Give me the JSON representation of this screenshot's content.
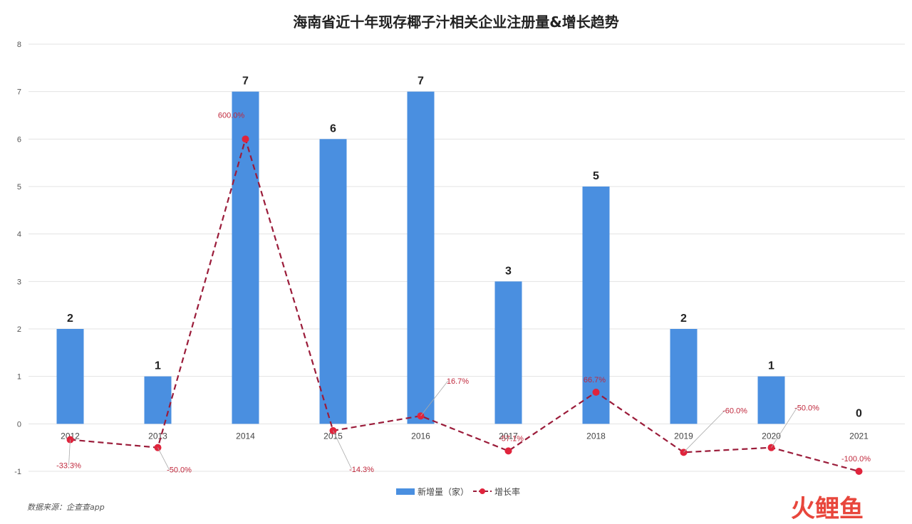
{
  "chart_data": {
    "type": "bar",
    "title": "海南省近十年现存椰子汁相关企业注册量&增长趋势",
    "categories": [
      "2012",
      "2013",
      "2014",
      "2015",
      "2016",
      "2017",
      "2018",
      "2019",
      "2020",
      "2021"
    ],
    "series": [
      {
        "name": "新增量（家）",
        "type": "bar",
        "color": "#4a8fe0",
        "values": [
          2,
          1,
          7,
          6,
          7,
          3,
          5,
          2,
          1,
          0
        ],
        "labels": [
          "2",
          "1",
          "7",
          "6",
          "7",
          "3",
          "5",
          "2",
          "1",
          "0"
        ]
      },
      {
        "name": "增长率",
        "type": "line",
        "style": "dashed",
        "color": "#9b1c3a",
        "marker_color": "#e0243c",
        "values": [
          -0.333,
          -0.5,
          6.0,
          -0.143,
          0.167,
          -0.571,
          0.667,
          -0.6,
          -0.5,
          -1.0
        ],
        "labels": [
          "-33.3%",
          "-50.0%",
          "600.0%",
          "-14.3%",
          "16.7%",
          "-57.1%",
          "66.7%",
          "-60.0%",
          "-50.0%",
          "-100.0%"
        ]
      }
    ],
    "ylim": [
      -1,
      8
    ],
    "yticks": [
      "-1",
      "0",
      "1",
      "2",
      "3",
      "4",
      "5",
      "6",
      "7",
      "8"
    ],
    "grid": true,
    "legend_position": "bottom-center"
  },
  "source_text": "数据来源：企查查app",
  "watermark": "火鲤鱼"
}
